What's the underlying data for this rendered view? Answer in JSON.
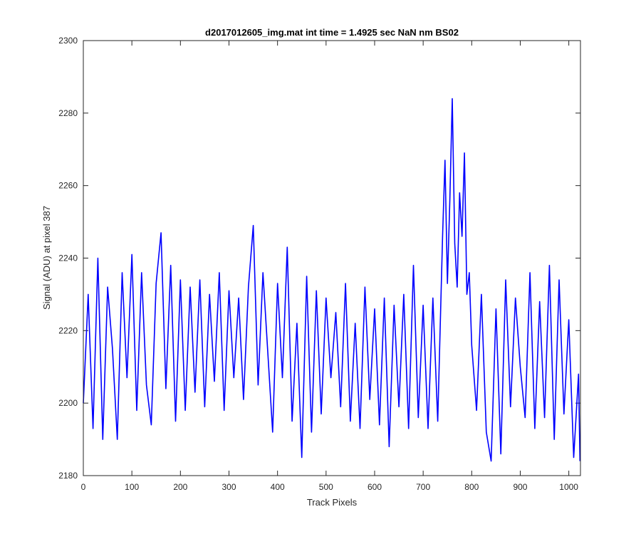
{
  "chart_data": {
    "type": "line",
    "title": "d2017012605_img.mat int time = 1.4925 sec  NaN nm BS02",
    "xlabel": "Track Pixels",
    "ylabel": "Signal (ADU) at pixel 387",
    "xlim": [
      0,
      1024
    ],
    "ylim": [
      2180,
      2300
    ],
    "xticks": [
      0,
      100,
      200,
      300,
      400,
      500,
      600,
      700,
      800,
      900,
      1000
    ],
    "yticks": [
      2180,
      2200,
      2220,
      2240,
      2260,
      2280,
      2300
    ],
    "grid": false,
    "box": true,
    "series_color": "#0000ff",
    "series": [
      {
        "x": [
          0,
          10,
          20,
          30,
          40,
          50,
          60,
          70,
          80,
          90,
          100,
          110,
          120,
          130,
          140,
          150,
          160,
          170,
          180,
          190,
          200,
          210,
          220,
          230,
          240,
          250,
          260,
          270,
          280,
          290,
          300,
          310,
          320,
          330,
          340,
          350,
          360,
          370,
          380,
          390,
          400,
          410,
          420,
          430,
          440,
          450,
          460,
          470,
          480,
          490,
          500,
          510,
          520,
          530,
          540,
          550,
          560,
          570,
          580,
          590,
          600,
          610,
          620,
          630,
          640,
          650,
          660,
          670,
          680,
          690,
          700,
          710,
          720,
          730,
          740,
          745,
          750,
          755,
          760,
          765,
          770,
          775,
          780,
          785,
          790,
          795,
          800,
          810,
          820,
          830,
          840,
          850,
          860,
          870,
          880,
          890,
          900,
          910,
          920,
          930,
          940,
          950,
          960,
          970,
          980,
          990,
          1000,
          1010,
          1020,
          1023
        ],
        "values": [
          2200,
          2230,
          2193,
          2240,
          2190,
          2232,
          2215,
          2190,
          2236,
          2207,
          2241,
          2198,
          2236,
          2205,
          2194,
          2233,
          2247,
          2204,
          2238,
          2195,
          2234,
          2198,
          2232,
          2203,
          2234,
          2199,
          2230,
          2206,
          2236,
          2198,
          2231,
          2207,
          2229,
          2201,
          2232,
          2249,
          2205,
          2236,
          2214,
          2192,
          2233,
          2207,
          2243,
          2195,
          2222,
          2185,
          2235,
          2192,
          2231,
          2197,
          2229,
          2207,
          2225,
          2199,
          2233,
          2195,
          2222,
          2193,
          2232,
          2201,
          2226,
          2194,
          2229,
          2188,
          2227,
          2199,
          2230,
          2193,
          2238,
          2196,
          2227,
          2193,
          2229,
          2195,
          2246,
          2267,
          2233,
          2256,
          2284,
          2244,
          2232,
          2258,
          2246,
          2269,
          2230,
          2236,
          2216,
          2198,
          2230,
          2192,
          2184,
          2226,
          2186,
          2234,
          2199,
          2229,
          2210,
          2196,
          2236,
          2193,
          2228,
          2196,
          2238,
          2190,
          2234,
          2197,
          2223,
          2185,
          2208,
          2184
        ]
      }
    ]
  }
}
